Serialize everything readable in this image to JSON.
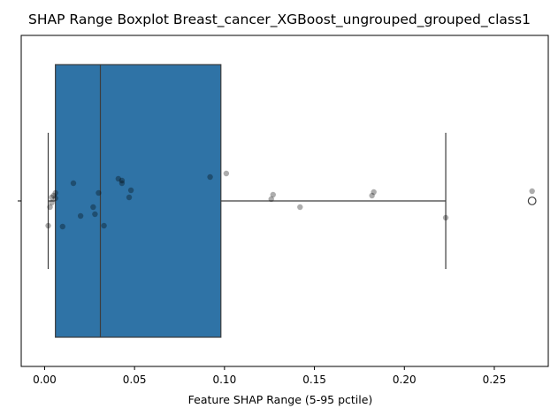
{
  "chart_data": {
    "type": "boxplot",
    "title": "SHAP Range Boxplot Breast_cancer_XGBoost_ungrouped_grouped_class1",
    "xlabel": "Feature SHAP Range (5-95 pctile)",
    "ylabel": "",
    "xlim": [
      -0.013,
      0.28
    ],
    "x_ticks": [
      0.0,
      0.05,
      0.1,
      0.15,
      0.2,
      0.25
    ],
    "x_tick_labels": [
      "0.00",
      "0.05",
      "0.10",
      "0.15",
      "0.20",
      "0.25"
    ],
    "grid": false,
    "box": {
      "whisker_low": 0.002,
      "q1": 0.006,
      "median": 0.031,
      "q3": 0.098,
      "whisker_high": 0.223,
      "outliers": [
        0.271
      ],
      "fill": "#2f73a6"
    },
    "points": [
      {
        "x": 0.002,
        "jitter": -0.28
      },
      {
        "x": 0.003,
        "jitter": -0.07
      },
      {
        "x": 0.004,
        "jitter": 0.04
      },
      {
        "x": 0.004,
        "jitter": -0.02
      },
      {
        "x": 0.005,
        "jitter": 0.06
      },
      {
        "x": 0.006,
        "jitter": 0.09
      },
      {
        "x": 0.006,
        "jitter": 0.03
      },
      {
        "x": 0.01,
        "jitter": -0.29
      },
      {
        "x": 0.016,
        "jitter": 0.2
      },
      {
        "x": 0.02,
        "jitter": -0.17
      },
      {
        "x": 0.027,
        "jitter": -0.07
      },
      {
        "x": 0.028,
        "jitter": -0.15
      },
      {
        "x": 0.03,
        "jitter": 0.09
      },
      {
        "x": 0.033,
        "jitter": -0.28
      },
      {
        "x": 0.041,
        "jitter": 0.25
      },
      {
        "x": 0.043,
        "jitter": 0.23
      },
      {
        "x": 0.043,
        "jitter": 0.2
      },
      {
        "x": 0.047,
        "jitter": 0.04
      },
      {
        "x": 0.048,
        "jitter": 0.12
      },
      {
        "x": 0.092,
        "jitter": 0.27
      },
      {
        "x": 0.101,
        "jitter": 0.31
      },
      {
        "x": 0.126,
        "jitter": 0.02
      },
      {
        "x": 0.127,
        "jitter": 0.07
      },
      {
        "x": 0.142,
        "jitter": -0.07
      },
      {
        "x": 0.182,
        "jitter": 0.06
      },
      {
        "x": 0.183,
        "jitter": 0.1
      },
      {
        "x": 0.223,
        "jitter": -0.19
      },
      {
        "x": 0.271,
        "jitter": 0.11
      }
    ]
  }
}
